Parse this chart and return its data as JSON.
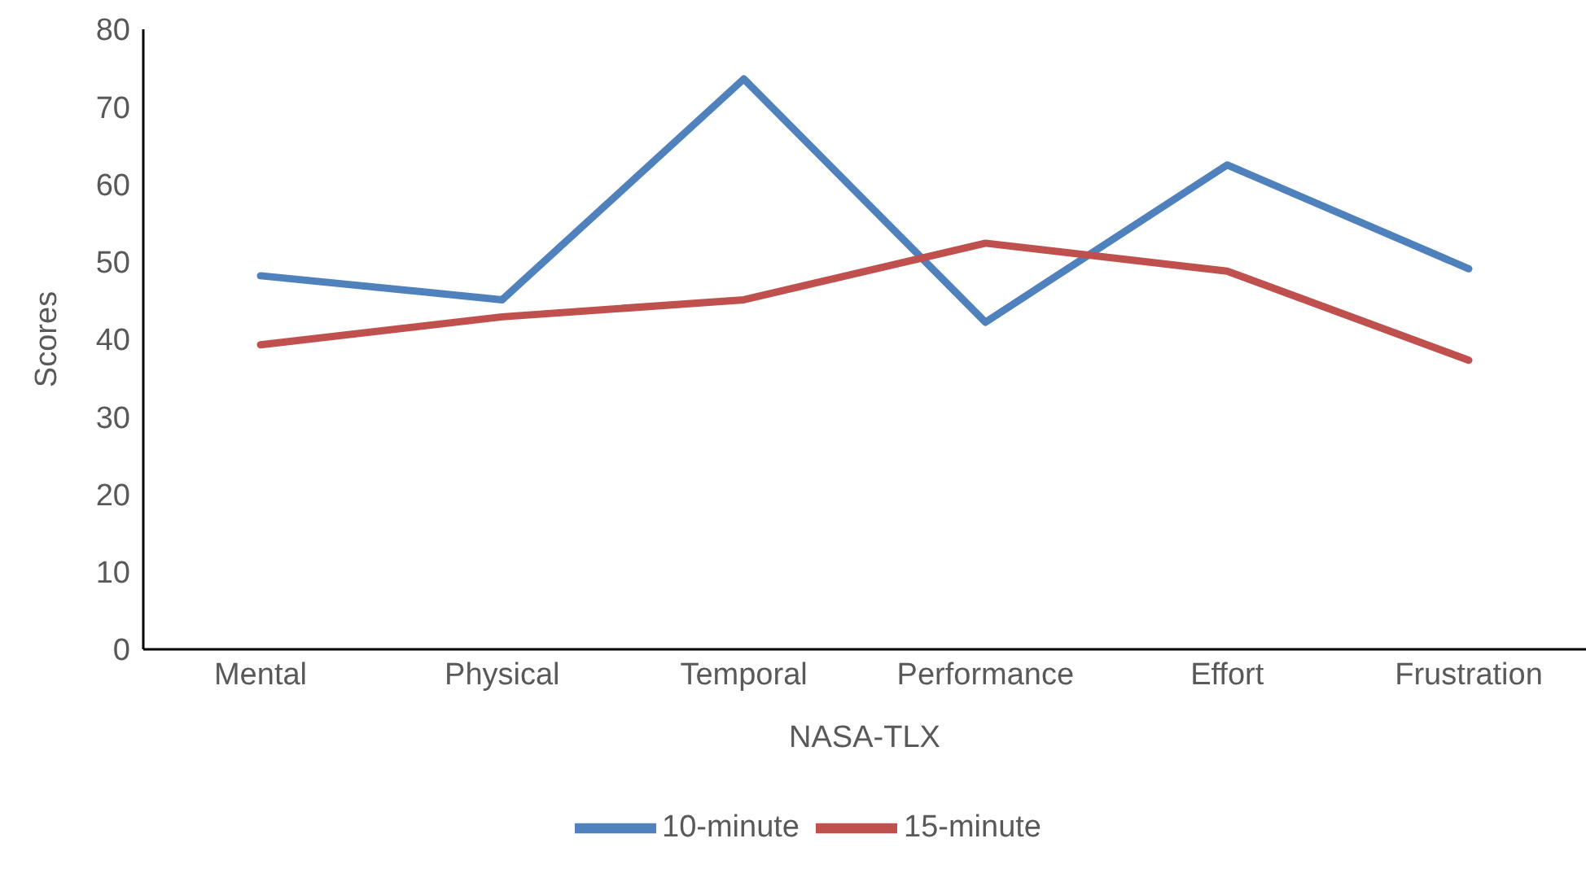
{
  "chart_data": {
    "type": "line",
    "xlabel": "NASA-TLX",
    "ylabel": "Scores",
    "categories": [
      "Mental",
      "Physical",
      "Temporal",
      "Performance",
      "Effort",
      "Frustration"
    ],
    "series": [
      {
        "name": "10-minute",
        "color": "#4f81bd",
        "values": [
          48.2,
          45.1,
          73.6,
          42.2,
          62.5,
          49.1
        ]
      },
      {
        "name": "15-minute",
        "color": "#c0504d",
        "values": [
          39.3,
          42.9,
          45.1,
          52.4,
          48.8,
          37.3
        ]
      }
    ],
    "ylim": [
      0,
      80
    ],
    "yticks": [
      0,
      10,
      20,
      30,
      40,
      50,
      60,
      70,
      80
    ],
    "grid": false,
    "legend": "bottom",
    "marker": "none",
    "line_style": "solid"
  }
}
